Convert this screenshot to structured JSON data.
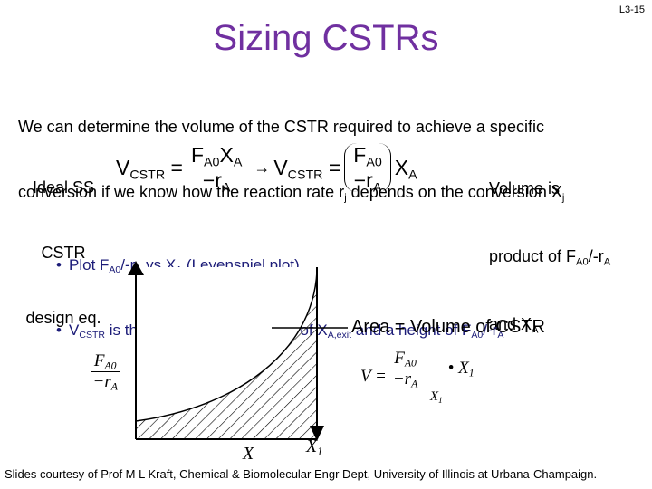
{
  "slide_number": "L3-15",
  "title": "Sizing CSTRs",
  "intro": [
    [
      "We can determine the volume of the CSTR required to achieve a specific"
    ],
    [
      "conversion if we know how the reaction rate r",
      {
        "sub": "j"
      },
      " depends on the conversion X",
      {
        "sub": "j"
      }
    ]
  ],
  "design_note": [
    "Ideal SS",
    "CSTR",
    "design eq."
  ],
  "equation": {
    "lhs": [
      "V",
      {
        "sub": "CSTR"
      },
      " ="
    ],
    "numerator": [
      "F",
      {
        "sub": "A0"
      },
      "X",
      {
        "sub": "A"
      }
    ],
    "denominator": [
      "−r",
      {
        "sub": "A"
      }
    ],
    "arrow": "→",
    "lhs2": [
      "V",
      {
        "sub": "CSTR"
      },
      " ="
    ],
    "numerator2": [
      "F",
      {
        "sub": "A0"
      }
    ],
    "denominator2": [
      "−r",
      {
        "sub": "A"
      }
    ],
    "factor": [
      "X",
      {
        "sub": "A"
      }
    ]
  },
  "volume_note": [
    [
      "Volume is"
    ],
    [
      "product of F",
      {
        "sub": "A0"
      },
      "/-r",
      {
        "sub": "A"
      }
    ],
    [
      "and X",
      {
        "sub": "A"
      }
    ]
  ],
  "bullets": [
    [
      "Plot F",
      {
        "sub": "A0"
      },
      "/-r",
      {
        "sub": "A"
      },
      " vs X",
      {
        "sub": "A"
      },
      " (Levenspiel plot)"
    ],
    [
      "V",
      {
        "sub": "CSTR"
      },
      " is the rectangle with a base of X",
      {
        "sub": "A,exit"
      },
      " and a height of F",
      {
        "sub": "A0"
      },
      "/-r",
      {
        "sub": "A"
      }
    ]
  ],
  "plot": {
    "y_label": {
      "numerator": [
        "F",
        {
          "sub": "A0"
        }
      ],
      "denominator": [
        "−r",
        {
          "sub": "A"
        }
      ]
    },
    "x_label": "X",
    "x_end_label": [
      "X",
      {
        "sub": "1"
      }
    ],
    "area_label": "Area = Volume of CSTR",
    "formula": {
      "lhs": "V =",
      "numerator": [
        "F",
        {
          "sub": "A0"
        }
      ],
      "denominator": [
        "−r",
        {
          "sub": "A"
        }
      ],
      "eval_at": [
        "X",
        {
          "sub": "1"
        }
      ],
      "factor": [
        "• X",
        {
          "sub": "1"
        }
      ]
    }
  },
  "footer": "Slides courtesy of Prof M L Kraft, Chemical & Biomolecular Engr Dept, University of Illinois at Urbana-Champaign."
}
